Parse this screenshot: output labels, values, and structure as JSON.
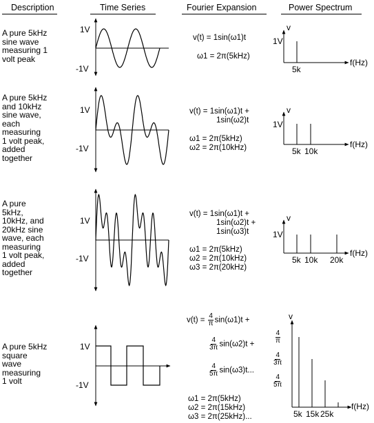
{
  "headers": {
    "description": "Description",
    "time_series": "Time Series",
    "fourier_expansion": "Fourier Expansion",
    "power_spectrum": "Power Spectrum"
  },
  "rows": [
    {
      "description": [
        "A pure 5kHz",
        "sine wave",
        "measuring 1",
        "volt peak"
      ],
      "time_plus": "1V",
      "time_minus": "-1V",
      "equations": [
        "v(t) = 1sin(ω1)t"
      ],
      "omegas": [
        "ω1 = 2π(5kHz)"
      ],
      "spectrum_v": "v",
      "spectrum_amp": "1V",
      "spectrum_ticks": [
        "5k"
      ],
      "spectrum_axis": "f(Hz)"
    },
    {
      "description": [
        "A pure 5kHz",
        "and 10kHz",
        "sine wave,",
        "each",
        "measuring",
        "1 volt peak,",
        "added",
        "together"
      ],
      "time_plus": "1V",
      "time_minus": "-1V",
      "equations": [
        "v(t) = 1sin(ω1)t  +",
        "1sin(ω2)t"
      ],
      "omegas": [
        "ω1 = 2π(5kHz)",
        "ω2 = 2π(10kHz)"
      ],
      "spectrum_v": "v",
      "spectrum_amp": "1V",
      "spectrum_ticks": [
        "5k",
        "10k"
      ],
      "spectrum_axis": "f(Hz)"
    },
    {
      "description": [
        "A pure",
        "5kHz,",
        "10kHz, and",
        "20kHz sine",
        "wave, each",
        "measuring",
        "1 volt peak,",
        "added",
        "together"
      ],
      "time_plus": "1V",
      "time_minus": "-1V",
      "equations": [
        "v(t) = 1sin(ω1)t  +",
        "1sin(ω2)t  +",
        "1sin(ω3)t"
      ],
      "omegas": [
        "ω1 = 2π(5kHz)",
        "ω2 = 2π(10kHz)",
        "ω3 = 2π(20kHz)"
      ],
      "spectrum_v": "v",
      "spectrum_amp": "1V",
      "spectrum_ticks": [
        "5k",
        "10k",
        "20k"
      ],
      "spectrum_axis": "f(Hz)"
    },
    {
      "description": [
        "A pure 5kHz",
        "square",
        "wave",
        "measuring",
        "1 volt"
      ],
      "time_plus": "1V",
      "time_minus": "-1V",
      "eq_prefix": "v(t) =",
      "terms": [
        {
          "num": "4",
          "den": "π",
          "text": "sin(ω1)t  +"
        },
        {
          "num": "4",
          "den": "3π",
          "text": "sin(ω2)t  +"
        },
        {
          "num": "4",
          "den": "5π",
          "text": "sin(ω3)t..."
        }
      ],
      "omegas": [
        "ω1 = 2π(5kHz)",
        "ω2 = 2π(15kHz)",
        "ω3 = 2π(25kHz)..."
      ],
      "spectrum_v": "v",
      "spectrum_amps": [
        {
          "num": "4",
          "den": "π"
        },
        {
          "num": "4",
          "den": "3π"
        },
        {
          "num": "4",
          "den": "5π"
        }
      ],
      "spectrum_ticks": [
        "5k",
        "15k",
        "25k"
      ],
      "spectrum_axis": "f(Hz)"
    }
  ]
}
